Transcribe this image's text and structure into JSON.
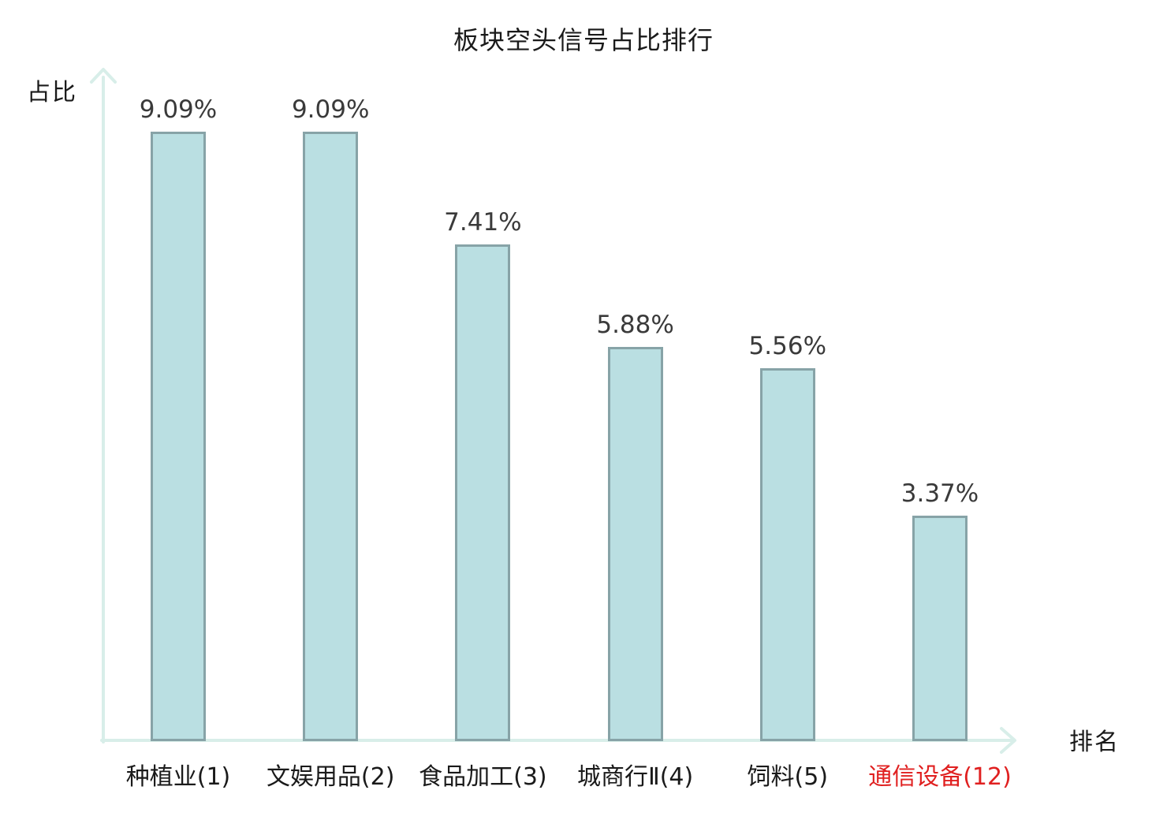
{
  "chart": {
    "title": "板块空头信号占比排行",
    "y_axis_label": "占比",
    "x_axis_label": "排名"
  },
  "chart_data": {
    "type": "bar",
    "title": "板块空头信号占比排行",
    "xlabel": "排名",
    "ylabel": "占比",
    "categories": [
      "种植业(1)",
      "文娱用品(2)",
      "食品加工(3)",
      "城商行Ⅱ(4)",
      "饲料(5)",
      "通信设备(12)"
    ],
    "values": [
      9.09,
      9.09,
      7.41,
      5.88,
      5.56,
      3.37
    ],
    "value_labels": [
      "9.09%",
      "9.09%",
      "7.41%",
      "5.88%",
      "5.56%",
      "3.37%"
    ],
    "ylim": [
      0,
      10
    ],
    "grid": false,
    "legend": "none",
    "highlight_category_index": 5,
    "colors": {
      "bar_fill": "#badfe2",
      "bar_border": "#87a3a7",
      "axis": "#d8eee9",
      "title": "#1a1a1a",
      "value_label": "#3a3a3a",
      "category_label": "#1a1a1a",
      "highlight_category": "#e02020"
    }
  }
}
